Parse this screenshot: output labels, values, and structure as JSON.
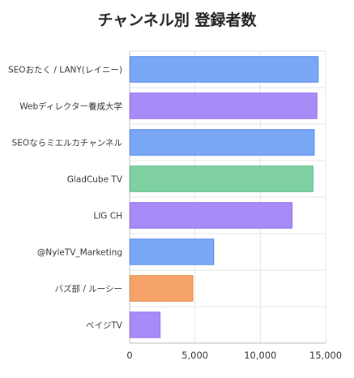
{
  "chart_data": {
    "type": "bar",
    "orientation": "horizontal",
    "title": "チャンネル別 登録者数",
    "xlabel": "",
    "ylabel": "",
    "xlim": [
      0,
      15000
    ],
    "xticks": [
      0,
      5000,
      10000,
      15000
    ],
    "xtick_labels": [
      "0",
      "5,000",
      "10,000",
      "15,000"
    ],
    "grid": "vertical",
    "categories": [
      "SEOおたく / LANY(レイニー)",
      "Webディレクター養成大学",
      "SEOならミエルカチャンネル",
      "GladCube TV",
      "LIG CH",
      "@NyleTV_Marketing",
      "バズ部 / ルーシー",
      "ベイジTV"
    ],
    "values": [
      14400,
      14300,
      14100,
      14000,
      12400,
      6400,
      4800,
      2300
    ],
    "colors": [
      "#7ba7f7",
      "#a78bf7",
      "#7ba7f7",
      "#7fd1a3",
      "#a78bf7",
      "#7ba7f7",
      "#f5a36a",
      "#a78bf7"
    ],
    "borders": [
      "#4f86ee",
      "#8a68ee",
      "#4f86ee",
      "#4fb57c",
      "#8a68ee",
      "#4f86ee",
      "#e9833e",
      "#8a68ee"
    ]
  }
}
